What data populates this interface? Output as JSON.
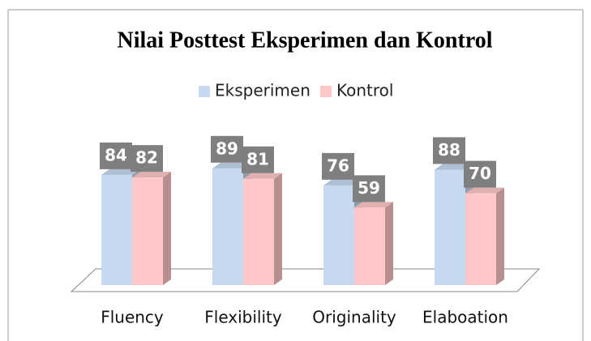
{
  "chart_data": {
    "type": "bar3d",
    "title": "Nilai Posttest Eksperimen dan Kontrol",
    "categories": [
      "Fluency",
      "Flexibility",
      "Originality",
      "Elaboation"
    ],
    "series": [
      {
        "name": "Eksperimen",
        "color": "#c6d9f1",
        "values": [
          84,
          89,
          76,
          88
        ]
      },
      {
        "name": "Kontrol",
        "color": "#ffc7c7",
        "values": [
          82,
          81,
          59,
          70
        ]
      }
    ]
  }
}
